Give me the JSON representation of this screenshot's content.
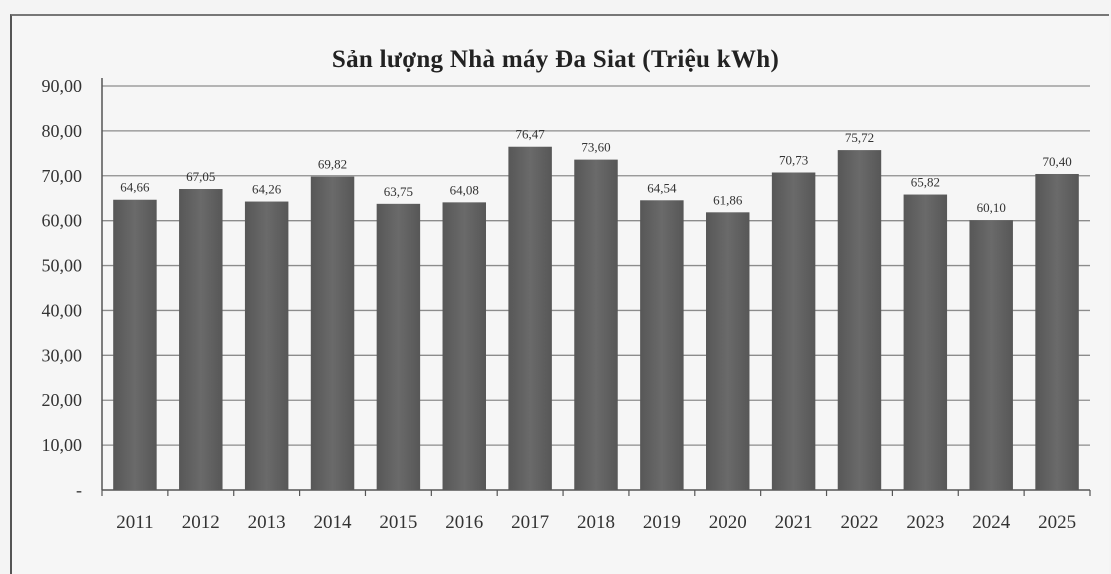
{
  "chart_data": {
    "type": "bar",
    "title": "Sản lượng Nhà máy Đa Siat (Triệu kWh)",
    "categories": [
      "2011",
      "2012",
      "2013",
      "2014",
      "2015",
      "2016",
      "2017",
      "2018",
      "2019",
      "2020",
      "2021",
      "2022",
      "2023",
      "2024",
      "2025"
    ],
    "values": [
      64.66,
      67.05,
      64.26,
      69.82,
      63.75,
      64.08,
      76.47,
      73.6,
      64.54,
      61.86,
      70.73,
      75.72,
      65.82,
      60.1,
      70.4
    ],
    "data_labels": [
      "64,66",
      "67,05",
      "64,26",
      "69,82",
      "63,75",
      "64,08",
      "76,47",
      "73,60",
      "64,54",
      "61,86",
      "70,73",
      "75,72",
      "65,82",
      "60,10",
      "70,40"
    ],
    "yticks": [
      "-",
      "10,00",
      "20,00",
      "30,00",
      "40,00",
      "50,00",
      "60,00",
      "70,00",
      "80,00",
      "90,00"
    ],
    "ylim": [
      0,
      90
    ],
    "grid": true,
    "legend": "none",
    "colors": {
      "bar": "#6a6a6a",
      "bar_dark": "#575757",
      "grid": "#8c8c8c",
      "axis": "#555555"
    }
  }
}
